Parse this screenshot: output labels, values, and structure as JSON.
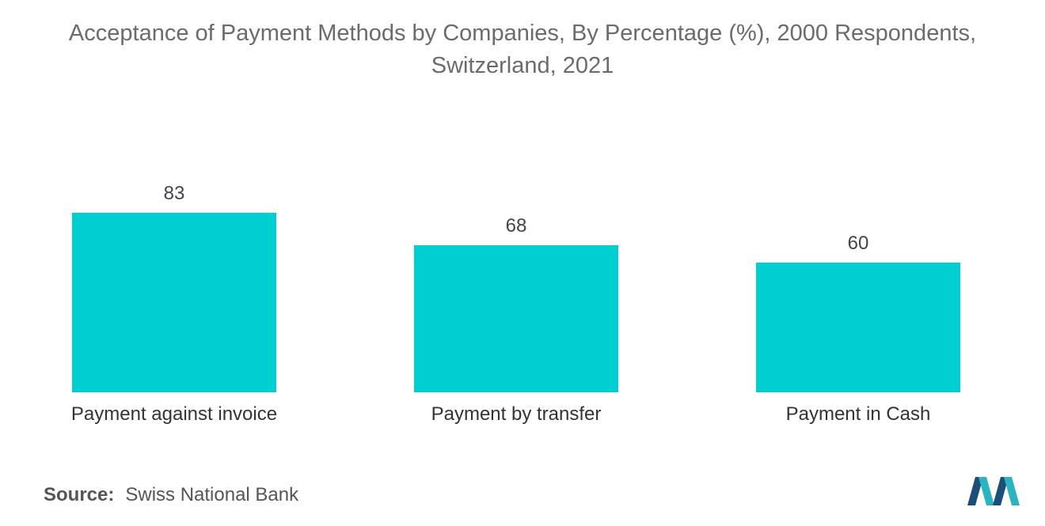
{
  "chart_data": {
    "type": "bar",
    "title": "Acceptance of Payment Methods by Companies, By Percentage (%), 2000 Respondents,",
    "subtitle": "Switzerland, 2021",
    "categories": [
      "Payment against invoice",
      "Payment by transfer",
      "Payment in Cash"
    ],
    "values": [
      83,
      68,
      60
    ],
    "xlabel": "",
    "ylabel": "",
    "ylim": [
      0,
      83
    ],
    "grid": false,
    "legend": "none",
    "bar_color": "#00ced1"
  },
  "source": {
    "label": "Source:",
    "text": "Swiss National Bank"
  },
  "logo": {
    "icon": "mordor-intelligence-logo",
    "colors": [
      "#1b4f7a",
      "#2bb3c0"
    ]
  }
}
